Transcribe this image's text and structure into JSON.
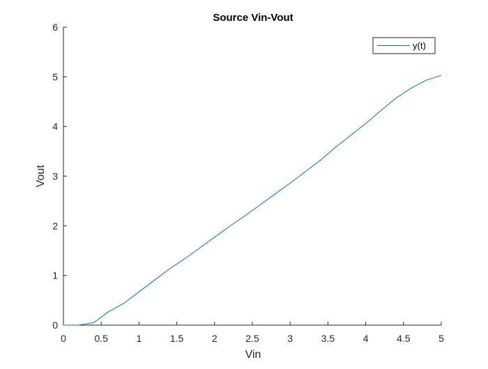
{
  "chart_data": {
    "type": "line",
    "title": "Source Vin-Vout",
    "xlabel": "Vin",
    "ylabel": "Vout",
    "xlim": [
      0,
      5
    ],
    "ylim": [
      0,
      6
    ],
    "xticks": [
      "0",
      "0.5",
      "1",
      "1.5",
      "2",
      "2.5",
      "3",
      "3.5",
      "4",
      "4.5",
      "5"
    ],
    "yticks": [
      "0",
      "1",
      "2",
      "3",
      "4",
      "5",
      "6"
    ],
    "grid": false,
    "legend_position": "top-right",
    "series": [
      {
        "name": "y(t)",
        "color": "#0072BD",
        "x": [
          0,
          0.2,
          0.4,
          0.6,
          0.8,
          1.0,
          1.2,
          1.4,
          1.6,
          1.8,
          2.0,
          2.2,
          2.4,
          2.6,
          2.8,
          3.0,
          3.2,
          3.4,
          3.6,
          3.8,
          4.0,
          4.2,
          4.4,
          4.6,
          4.8,
          5.0
        ],
        "y": [
          0,
          0,
          0.05,
          0.27,
          0.44,
          0.67,
          0.9,
          1.13,
          1.33,
          1.55,
          1.77,
          1.99,
          2.2,
          2.42,
          2.64,
          2.86,
          3.09,
          3.32,
          3.58,
          3.82,
          4.06,
          4.32,
          4.57,
          4.77,
          4.93,
          5.03
        ]
      }
    ]
  }
}
